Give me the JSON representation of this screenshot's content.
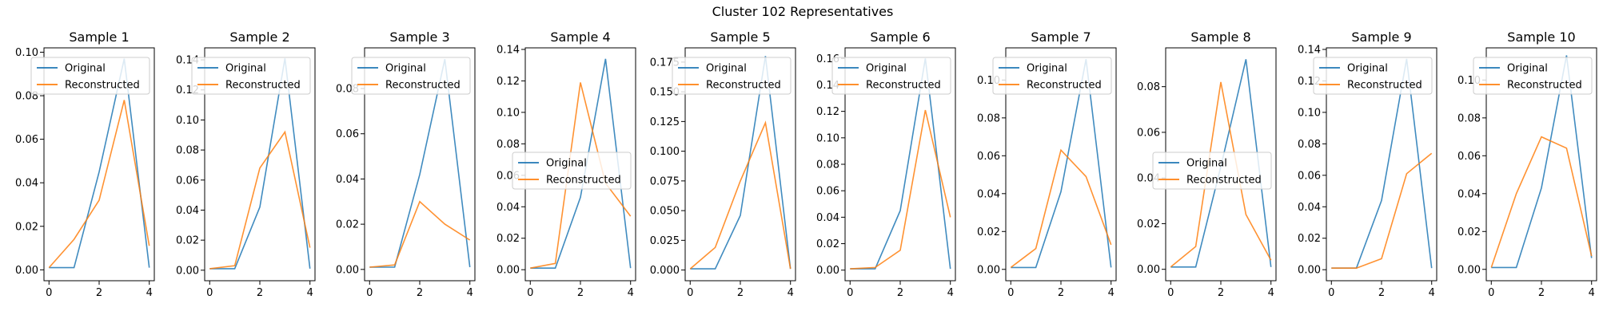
{
  "figure_title": "Cluster 102 Representatives",
  "colors": {
    "original": "#1f77b4",
    "reconstructed": "#ff7f0e"
  },
  "chart_data": [
    {
      "type": "line",
      "title": "Sample 1",
      "x": [
        0,
        1,
        2,
        3,
        4
      ],
      "xticks": [
        0,
        2,
        4
      ],
      "ylim": [
        -0.005,
        0.102
      ],
      "yticks": [
        "0.00",
        "0.02",
        "0.04",
        "0.06",
        "0.08",
        "0.10"
      ],
      "ytick_values": [
        0,
        0.02,
        0.04,
        0.06,
        0.08,
        0.1
      ],
      "legend": "top-left",
      "series": [
        {
          "name": "Original",
          "values": [
            0.001,
            0.001,
            0.045,
            0.097,
            0.001
          ]
        },
        {
          "name": "Reconstructed",
          "values": [
            0.001,
            0.014,
            0.032,
            0.078,
            0.011
          ]
        }
      ]
    },
    {
      "type": "line",
      "title": "Sample 2",
      "x": [
        0,
        1,
        2,
        3,
        4
      ],
      "xticks": [
        0,
        2,
        4
      ],
      "ylim": [
        -0.007,
        0.148
      ],
      "yticks": [
        "0.00",
        "0.02",
        "0.04",
        "0.06",
        "0.08",
        "0.10",
        "0.12",
        "0.14"
      ],
      "ytick_values": [
        0,
        0.02,
        0.04,
        0.06,
        0.08,
        0.1,
        0.12,
        0.14
      ],
      "legend": "top-left",
      "series": [
        {
          "name": "Original",
          "values": [
            0.001,
            0.001,
            0.042,
            0.141,
            0.001
          ]
        },
        {
          "name": "Reconstructed",
          "values": [
            0.001,
            0.003,
            0.068,
            0.092,
            0.015
          ]
        }
      ]
    },
    {
      "type": "line",
      "title": "Sample 3",
      "x": [
        0,
        1,
        2,
        3,
        4
      ],
      "xticks": [
        0,
        2,
        4
      ],
      "ylim": [
        -0.005,
        0.098
      ],
      "yticks": [
        "0.00",
        "0.02",
        "0.04",
        "0.06",
        "0.08"
      ],
      "ytick_values": [
        0,
        0.02,
        0.04,
        0.06,
        0.08
      ],
      "legend": "top-left",
      "series": [
        {
          "name": "Original",
          "values": [
            0.001,
            0.001,
            0.042,
            0.093,
            0.001
          ]
        },
        {
          "name": "Reconstructed",
          "values": [
            0.001,
            0.002,
            0.03,
            0.02,
            0.013
          ]
        }
      ]
    },
    {
      "type": "line",
      "title": "Sample 4",
      "x": [
        0,
        1,
        2,
        3,
        4
      ],
      "xticks": [
        0,
        2,
        4
      ],
      "ylim": [
        -0.007,
        0.141
      ],
      "yticks": [
        "0.00",
        "0.02",
        "0.04",
        "0.06",
        "0.08",
        "0.10",
        "0.12",
        "0.14"
      ],
      "ytick_values": [
        0,
        0.02,
        0.04,
        0.06,
        0.08,
        0.1,
        0.12,
        0.14
      ],
      "legend": "center-left",
      "series": [
        {
          "name": "Original",
          "values": [
            0.001,
            0.001,
            0.046,
            0.134,
            0.001
          ]
        },
        {
          "name": "Reconstructed",
          "values": [
            0.001,
            0.004,
            0.119,
            0.055,
            0.034
          ]
        }
      ]
    },
    {
      "type": "line",
      "title": "Sample 5",
      "x": [
        0,
        1,
        2,
        3,
        4
      ],
      "xticks": [
        0,
        2,
        4
      ],
      "ylim": [
        -0.009,
        0.187
      ],
      "yticks": [
        "0.000",
        "0.025",
        "0.050",
        "0.075",
        "0.100",
        "0.125",
        "0.150",
        "0.175"
      ],
      "ytick_values": [
        0,
        0.025,
        0.05,
        0.075,
        0.1,
        0.125,
        0.15,
        0.175
      ],
      "legend": "top-left",
      "series": [
        {
          "name": "Original",
          "values": [
            0.001,
            0.001,
            0.046,
            0.18,
            0.001
          ]
        },
        {
          "name": "Reconstructed",
          "values": [
            0.001,
            0.019,
            0.075,
            0.124,
            0.001
          ]
        }
      ]
    },
    {
      "type": "line",
      "title": "Sample 6",
      "x": [
        0,
        1,
        2,
        3,
        4
      ],
      "xticks": [
        0,
        2,
        4
      ],
      "ylim": [
        -0.008,
        0.168
      ],
      "yticks": [
        "0.00",
        "0.02",
        "0.04",
        "0.06",
        "0.08",
        "0.10",
        "0.12",
        "0.14",
        "0.16"
      ],
      "ytick_values": [
        0,
        0.02,
        0.04,
        0.06,
        0.08,
        0.1,
        0.12,
        0.14,
        0.16
      ],
      "legend": "top-left",
      "series": [
        {
          "name": "Original",
          "values": [
            0.001,
            0.001,
            0.045,
            0.16,
            0.001
          ]
        },
        {
          "name": "Reconstructed",
          "values": [
            0.001,
            0.002,
            0.015,
            0.121,
            0.04
          ]
        }
      ]
    },
    {
      "type": "line",
      "title": "Sample 7",
      "x": [
        0,
        1,
        2,
        3,
        4
      ],
      "xticks": [
        0,
        2,
        4
      ],
      "ylim": [
        -0.006,
        0.117
      ],
      "yticks": [
        "0.00",
        "0.02",
        "0.04",
        "0.06",
        "0.08",
        "0.10"
      ],
      "ytick_values": [
        0,
        0.02,
        0.04,
        0.06,
        0.08,
        0.1
      ],
      "legend": "top-left",
      "series": [
        {
          "name": "Original",
          "values": [
            0.001,
            0.001,
            0.041,
            0.111,
            0.001
          ]
        },
        {
          "name": "Reconstructed",
          "values": [
            0.001,
            0.011,
            0.063,
            0.049,
            0.013
          ]
        }
      ]
    },
    {
      "type": "line",
      "title": "Sample 8",
      "x": [
        0,
        1,
        2,
        3,
        4
      ],
      "xticks": [
        0,
        2,
        4
      ],
      "ylim": [
        -0.005,
        0.097
      ],
      "yticks": [
        "0.00",
        "0.02",
        "0.04",
        "0.06",
        "0.08"
      ],
      "ytick_values": [
        0,
        0.02,
        0.04,
        0.06,
        0.08
      ],
      "legend": "center-left",
      "series": [
        {
          "name": "Original",
          "values": [
            0.001,
            0.001,
            0.045,
            0.092,
            0.001
          ]
        },
        {
          "name": "Reconstructed",
          "values": [
            0.001,
            0.01,
            0.082,
            0.024,
            0.004
          ]
        }
      ]
    },
    {
      "type": "line",
      "title": "Sample 9",
      "x": [
        0,
        1,
        2,
        3,
        4
      ],
      "xticks": [
        0,
        2,
        4
      ],
      "ylim": [
        -0.007,
        0.141
      ],
      "yticks": [
        "0.00",
        "0.02",
        "0.04",
        "0.06",
        "0.08",
        "0.10",
        "0.12",
        "0.14"
      ],
      "ytick_values": [
        0,
        0.02,
        0.04,
        0.06,
        0.08,
        0.1,
        0.12,
        0.14
      ],
      "legend": "top-left",
      "series": [
        {
          "name": "Original",
          "values": [
            0.001,
            0.001,
            0.044,
            0.134,
            0.001
          ]
        },
        {
          "name": "Reconstructed",
          "values": [
            0.001,
            0.001,
            0.007,
            0.061,
            0.074
          ]
        }
      ]
    },
    {
      "type": "line",
      "title": "Sample 10",
      "x": [
        0,
        1,
        2,
        3,
        4
      ],
      "xticks": [
        0,
        2,
        4
      ],
      "ylim": [
        -0.006,
        0.117
      ],
      "yticks": [
        "0.00",
        "0.02",
        "0.04",
        "0.06",
        "0.08",
        "0.10"
      ],
      "ytick_values": [
        0,
        0.02,
        0.04,
        0.06,
        0.08,
        0.1
      ],
      "legend": "top-left",
      "series": [
        {
          "name": "Original",
          "values": [
            0.001,
            0.001,
            0.043,
            0.113,
            0.006
          ]
        },
        {
          "name": "Reconstructed",
          "values": [
            0.001,
            0.04,
            0.07,
            0.064,
            0.007
          ]
        }
      ]
    }
  ]
}
